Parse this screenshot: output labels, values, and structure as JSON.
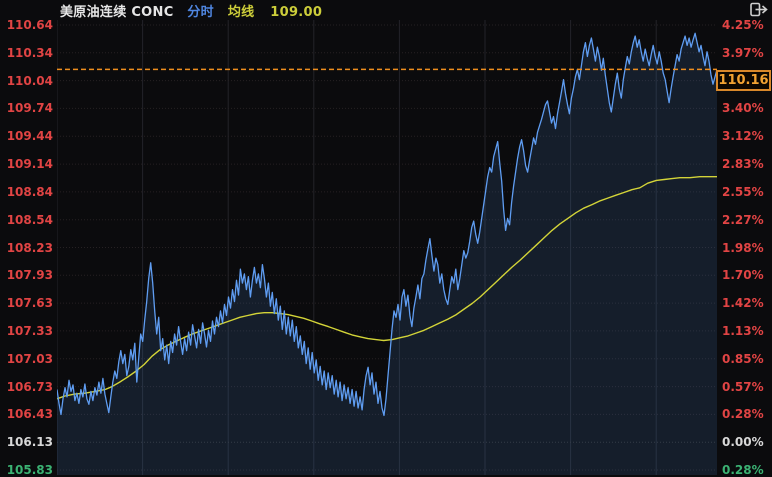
{
  "header": {
    "title": "美原油连续 CONC",
    "mode_label": "分时",
    "ma_label": "均线",
    "ma_value": "109.00"
  },
  "badge": {
    "value": "110.16"
  },
  "colors": {
    "background": "#0b0b0d",
    "tick_red": "#e14444",
    "tick_white": "#d8d8d8",
    "tick_green": "#3bb273",
    "price_line_blue": "#5f9df2",
    "price_fill": "rgba(72,126,196,0.17)",
    "ma_yellow": "#d3d438",
    "dashed_orange": "#ef8e1e",
    "badge_border": "#d9882a",
    "badge_text": "#f2a232",
    "mode_blue": "#4f86e0"
  },
  "y_axis_left": [
    {
      "text": "110.64",
      "color": "red"
    },
    {
      "text": "110.34",
      "color": "red"
    },
    {
      "text": "110.04",
      "color": "red"
    },
    {
      "text": "109.74",
      "color": "red"
    },
    {
      "text": "109.44",
      "color": "red"
    },
    {
      "text": "109.14",
      "color": "red"
    },
    {
      "text": "108.84",
      "color": "red"
    },
    {
      "text": "108.54",
      "color": "red"
    },
    {
      "text": "108.23",
      "color": "red"
    },
    {
      "text": "107.93",
      "color": "red"
    },
    {
      "text": "107.63",
      "color": "red"
    },
    {
      "text": "107.33",
      "color": "red"
    },
    {
      "text": "107.03",
      "color": "red"
    },
    {
      "text": "106.73",
      "color": "red"
    },
    {
      "text": "106.43",
      "color": "red"
    },
    {
      "text": "106.13",
      "color": "white"
    },
    {
      "text": "105.83",
      "color": "green"
    }
  ],
  "y_axis_right": [
    {
      "row": 0,
      "text": "4.25%",
      "color": "red"
    },
    {
      "row": 1,
      "text": "3.97%",
      "color": "red"
    },
    {
      "row": 3,
      "text": "3.40%",
      "color": "red"
    },
    {
      "row": 4,
      "text": "3.12%",
      "color": "red"
    },
    {
      "row": 5,
      "text": "2.83%",
      "color": "red"
    },
    {
      "row": 6,
      "text": "2.55%",
      "color": "red"
    },
    {
      "row": 7,
      "text": "2.27%",
      "color": "red"
    },
    {
      "row": 8,
      "text": "1.98%",
      "color": "red"
    },
    {
      "row": 9,
      "text": "1.70%",
      "color": "red"
    },
    {
      "row": 10,
      "text": "1.42%",
      "color": "red"
    },
    {
      "row": 11,
      "text": "1.13%",
      "color": "red"
    },
    {
      "row": 12,
      "text": "0.85%",
      "color": "red"
    },
    {
      "row": 13,
      "text": "0.57%",
      "color": "red"
    },
    {
      "row": 14,
      "text": "0.28%",
      "color": "red"
    },
    {
      "row": 15,
      "text": "0.00%",
      "color": "white"
    },
    {
      "row": 16,
      "text": "0.28%",
      "color": "green"
    }
  ],
  "chart_data": {
    "type": "line",
    "title": "美原油连续 CONC 分时",
    "x_axis": {
      "labels_visible": false,
      "x_encoding": "uniform_fraction_of_session_0_to_1"
    },
    "y_axis": {
      "top_price": 110.64,
      "bottom_price": 105.83,
      "prev_close": 106.13,
      "left_tick_prices": [
        110.64,
        110.34,
        110.04,
        109.74,
        109.44,
        109.14,
        108.84,
        108.54,
        108.23,
        107.93,
        107.63,
        107.33,
        107.03,
        106.73,
        106.43,
        106.13,
        105.83
      ],
      "right_tick_percents": [
        4.25,
        3.97,
        3.68,
        3.4,
        3.12,
        2.83,
        2.55,
        2.27,
        1.98,
        1.7,
        1.42,
        1.13,
        0.85,
        0.57,
        0.28,
        0.0,
        -0.28
      ]
    },
    "current_price": 110.16,
    "ma_current": 109.0,
    "grid": {
      "h_rows": 17,
      "v_interior_cols": 7
    },
    "series": [
      {
        "name": "分时价格",
        "color": "#5f9df2",
        "sampling": "uniform",
        "values": [
          106.7,
          106.55,
          106.43,
          106.6,
          106.72,
          106.62,
          106.8,
          106.68,
          106.75,
          106.58,
          106.66,
          106.55,
          106.7,
          106.62,
          106.76,
          106.6,
          106.54,
          106.68,
          106.58,
          106.72,
          106.64,
          106.78,
          106.66,
          106.82,
          106.65,
          106.55,
          106.45,
          106.62,
          106.78,
          106.9,
          106.82,
          107.0,
          107.12,
          106.98,
          107.08,
          106.85,
          106.95,
          107.13,
          107.02,
          107.2,
          106.78,
          107.05,
          107.3,
          107.22,
          107.45,
          107.65,
          107.9,
          108.07,
          107.85,
          107.55,
          107.3,
          107.48,
          107.12,
          107.25,
          107.02,
          107.18,
          106.98,
          107.22,
          107.1,
          107.3,
          107.18,
          107.38,
          107.22,
          107.08,
          107.25,
          107.12,
          107.32,
          107.18,
          107.4,
          107.28,
          107.15,
          107.35,
          107.2,
          107.42,
          107.3,
          107.16,
          107.34,
          107.22,
          107.44,
          107.3,
          107.48,
          107.38,
          107.55,
          107.42,
          107.62,
          107.5,
          107.7,
          107.58,
          107.78,
          107.65,
          107.88,
          107.72,
          108.0,
          107.85,
          107.95,
          107.78,
          107.92,
          107.7,
          107.88,
          108.02,
          107.85,
          107.95,
          107.8,
          108.05,
          107.9,
          107.7,
          107.85,
          107.6,
          107.75,
          107.52,
          107.68,
          107.45,
          107.6,
          107.35,
          107.55,
          107.3,
          107.48,
          107.28,
          107.45,
          107.22,
          107.38,
          107.15,
          107.28,
          107.08,
          107.22,
          106.98,
          107.15,
          106.92,
          107.1,
          106.88,
          107.02,
          106.8,
          106.95,
          106.75,
          106.9,
          106.7,
          106.88,
          106.72,
          106.85,
          106.65,
          106.8,
          106.62,
          106.78,
          106.58,
          106.75,
          106.6,
          106.72,
          106.55,
          106.7,
          106.52,
          106.68,
          106.5,
          106.62,
          106.48,
          106.7,
          106.85,
          106.94,
          106.75,
          106.88,
          106.65,
          106.78,
          106.55,
          106.68,
          106.5,
          106.42,
          106.6,
          106.85,
          107.1,
          107.35,
          107.55,
          107.48,
          107.62,
          107.45,
          107.7,
          107.78,
          107.6,
          107.72,
          107.5,
          107.38,
          107.58,
          107.7,
          107.83,
          107.68,
          107.9,
          107.95,
          108.1,
          108.22,
          108.33,
          108.15,
          107.98,
          108.12,
          108.05,
          107.85,
          107.95,
          107.78,
          107.68,
          107.62,
          107.78,
          107.92,
          107.85,
          108.0,
          107.78,
          107.9,
          108.05,
          108.2,
          108.12,
          108.18,
          108.3,
          108.45,
          108.52,
          108.38,
          108.28,
          108.4,
          108.55,
          108.7,
          108.85,
          109.0,
          109.1,
          109.05,
          109.22,
          109.3,
          109.38,
          109.15,
          108.95,
          108.65,
          108.42,
          108.55,
          108.48,
          108.72,
          108.9,
          109.05,
          109.2,
          109.32,
          109.4,
          109.28,
          109.12,
          109.05,
          109.18,
          109.3,
          109.42,
          109.35,
          109.48,
          109.55,
          109.62,
          109.7,
          109.78,
          109.82,
          109.7,
          109.58,
          109.65,
          109.52,
          109.68,
          109.8,
          109.92,
          110.05,
          109.9,
          109.78,
          109.68,
          109.85,
          109.95,
          110.08,
          110.16,
          110.05,
          110.2,
          110.35,
          110.45,
          110.3,
          110.42,
          110.5,
          110.38,
          110.25,
          110.4,
          110.3,
          110.15,
          110.28,
          110.1,
          109.95,
          109.8,
          109.7,
          109.85,
          110.0,
          110.12,
          109.95,
          109.85,
          110.05,
          110.18,
          110.3,
          110.22,
          110.35,
          110.45,
          110.52,
          110.4,
          110.48,
          110.35,
          110.25,
          110.38,
          110.28,
          110.2,
          110.32,
          110.42,
          110.3,
          110.22,
          110.35,
          110.25,
          110.12,
          110.05,
          109.92,
          109.8,
          109.95,
          110.08,
          110.2,
          110.32,
          110.25,
          110.38,
          110.45,
          110.52,
          110.42,
          110.5,
          110.4,
          110.48,
          110.55,
          110.45,
          110.35,
          110.42,
          110.3,
          110.2,
          110.35,
          110.25,
          110.1,
          110.0,
          110.08,
          110.16
        ]
      },
      {
        "name": "均线",
        "color": "#d3d438",
        "points": [
          [
            0.0,
            106.6
          ],
          [
            0.012,
            106.63
          ],
          [
            0.027,
            106.65
          ],
          [
            0.042,
            106.66
          ],
          [
            0.058,
            106.68
          ],
          [
            0.073,
            106.7
          ],
          [
            0.083,
            106.73
          ],
          [
            0.095,
            106.78
          ],
          [
            0.108,
            106.84
          ],
          [
            0.12,
            106.9
          ],
          [
            0.132,
            106.97
          ],
          [
            0.144,
            107.06
          ],
          [
            0.156,
            107.13
          ],
          [
            0.168,
            107.18
          ],
          [
            0.18,
            107.22
          ],
          [
            0.192,
            107.26
          ],
          [
            0.205,
            107.3
          ],
          [
            0.217,
            107.33
          ],
          [
            0.229,
            107.36
          ],
          [
            0.241,
            107.39
          ],
          [
            0.253,
            107.42
          ],
          [
            0.265,
            107.45
          ],
          [
            0.277,
            107.48
          ],
          [
            0.289,
            107.5
          ],
          [
            0.302,
            107.52
          ],
          [
            0.314,
            107.53
          ],
          [
            0.326,
            107.53
          ],
          [
            0.338,
            107.52
          ],
          [
            0.35,
            107.51
          ],
          [
            0.362,
            107.49
          ],
          [
            0.374,
            107.47
          ],
          [
            0.386,
            107.44
          ],
          [
            0.398,
            107.41
          ],
          [
            0.411,
            107.38
          ],
          [
            0.423,
            107.35
          ],
          [
            0.435,
            107.32
          ],
          [
            0.447,
            107.29
          ],
          [
            0.459,
            107.27
          ],
          [
            0.471,
            107.25
          ],
          [
            0.483,
            107.24
          ],
          [
            0.495,
            107.23
          ],
          [
            0.508,
            107.24
          ],
          [
            0.52,
            107.26
          ],
          [
            0.532,
            107.28
          ],
          [
            0.544,
            107.31
          ],
          [
            0.556,
            107.34
          ],
          [
            0.568,
            107.38
          ],
          [
            0.58,
            107.42
          ],
          [
            0.592,
            107.46
          ],
          [
            0.605,
            107.51
          ],
          [
            0.617,
            107.57
          ],
          [
            0.629,
            107.63
          ],
          [
            0.641,
            107.7
          ],
          [
            0.653,
            107.78
          ],
          [
            0.665,
            107.86
          ],
          [
            0.677,
            107.94
          ],
          [
            0.689,
            108.02
          ],
          [
            0.702,
            108.1
          ],
          [
            0.714,
            108.18
          ],
          [
            0.726,
            108.26
          ],
          [
            0.738,
            108.34
          ],
          [
            0.75,
            108.42
          ],
          [
            0.762,
            108.49
          ],
          [
            0.774,
            108.55
          ],
          [
            0.786,
            108.61
          ],
          [
            0.798,
            108.66
          ],
          [
            0.811,
            108.7
          ],
          [
            0.823,
            108.74
          ],
          [
            0.835,
            108.77
          ],
          [
            0.847,
            108.8
          ],
          [
            0.859,
            108.83
          ],
          [
            0.871,
            108.86
          ],
          [
            0.883,
            108.88
          ],
          [
            0.895,
            108.93
          ],
          [
            0.908,
            108.96
          ],
          [
            0.92,
            108.97
          ],
          [
            0.932,
            108.98
          ],
          [
            0.944,
            108.99
          ],
          [
            0.959,
            108.99
          ],
          [
            0.974,
            109.0
          ],
          [
            0.989,
            109.0
          ],
          [
            1.0,
            109.0
          ]
        ]
      }
    ]
  }
}
